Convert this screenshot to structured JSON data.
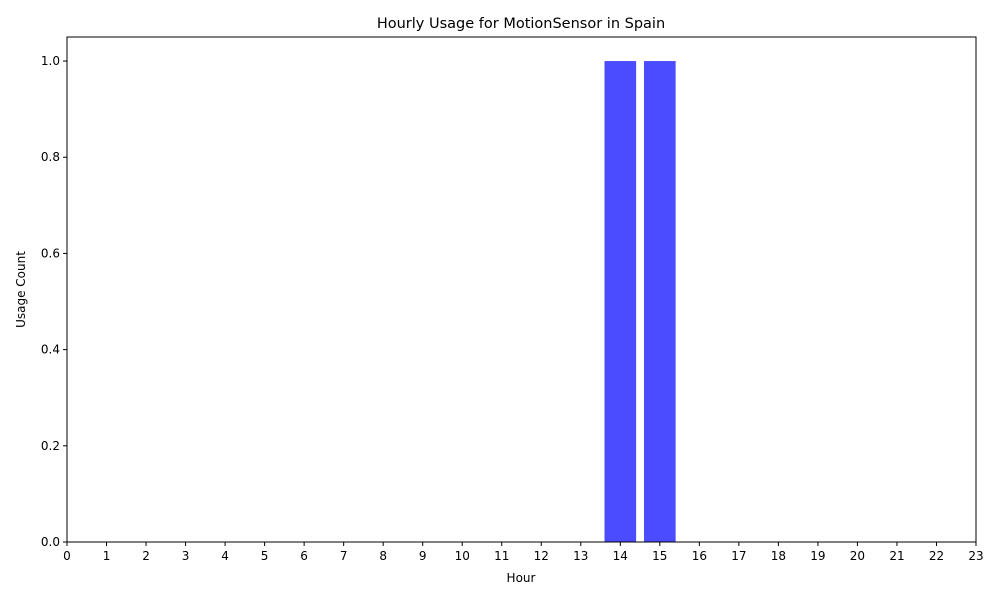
{
  "chart_data": {
    "type": "bar",
    "title": "Hourly Usage for MotionSensor in Spain",
    "xlabel": "Hour",
    "ylabel": "Usage Count",
    "categories": [
      "0",
      "1",
      "2",
      "3",
      "4",
      "5",
      "6",
      "7",
      "8",
      "9",
      "10",
      "11",
      "12",
      "13",
      "14",
      "15",
      "16",
      "17",
      "18",
      "19",
      "20",
      "21",
      "22",
      "23"
    ],
    "values": [
      0,
      0,
      0,
      0,
      0,
      0,
      0,
      0,
      0,
      0,
      0,
      0,
      0,
      0,
      1,
      1,
      0,
      0,
      0,
      0,
      0,
      0,
      0,
      0
    ],
    "ylim": [
      0,
      1.05
    ],
    "xlim": [
      0,
      23
    ],
    "yticks": [
      "0.0",
      "0.2",
      "0.4",
      "0.6",
      "0.8",
      "1.0"
    ],
    "bar_color": "#4b4bff",
    "grid": false,
    "legend": "none"
  }
}
